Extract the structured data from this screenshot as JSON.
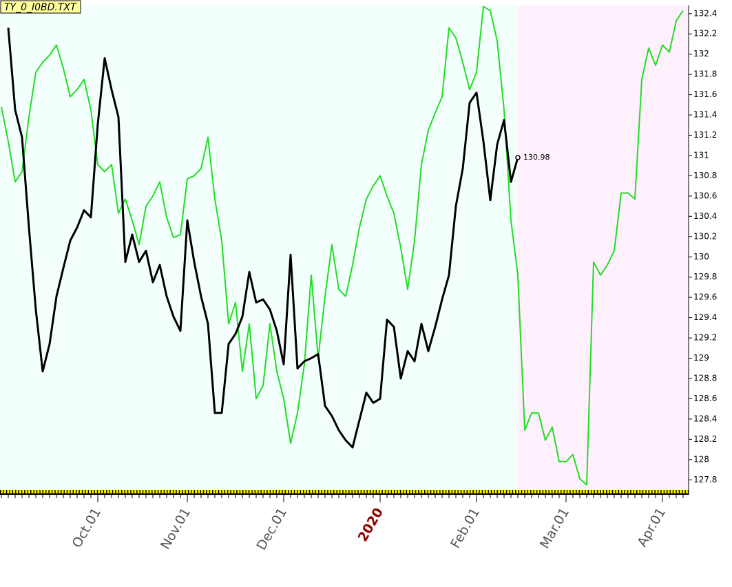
{
  "chart_data": {
    "type": "line",
    "title": "TY_0_I0BD.TXT",
    "categories": [
      null,
      null,
      null,
      null,
      null,
      null,
      null,
      null,
      null,
      null,
      null,
      null,
      null,
      null,
      "Oct.01",
      null,
      null,
      null,
      null,
      null,
      null,
      null,
      null,
      null,
      null,
      null,
      null,
      "Nov.01",
      null,
      null,
      null,
      null,
      null,
      null,
      null,
      null,
      null,
      null,
      null,
      null,
      null,
      "Dec.01",
      null,
      null,
      null,
      null,
      null,
      null,
      null,
      null,
      null,
      null,
      null,
      null,
      null,
      "2020",
      null,
      null,
      null,
      null,
      null,
      null,
      null,
      null,
      null,
      null,
      null,
      null,
      null,
      "Feb.01",
      null,
      null,
      null,
      null,
      null,
      null,
      null,
      null,
      null,
      null,
      null,
      null,
      "Mar.01",
      null,
      null,
      null,
      null,
      null,
      null,
      null,
      null,
      null,
      null,
      null,
      null,
      null,
      "Apr.01",
      null,
      null,
      null
    ],
    "series": [
      {
        "color": "#000000",
        "values": [
          null,
          132.26,
          131.45,
          131.18,
          130.29,
          129.48,
          128.87,
          129.14,
          129.61,
          129.89,
          130.16,
          130.29,
          130.46,
          130.39,
          131.31,
          131.96,
          131.65,
          131.38,
          129.95,
          130.22,
          129.95,
          130.06,
          129.75,
          129.92,
          129.61,
          129.41,
          129.27,
          130.36,
          129.95,
          129.61,
          129.34,
          128.46,
          128.46,
          129.14,
          129.24,
          129.41,
          129.85,
          129.55,
          129.58,
          129.48,
          129.27,
          128.94,
          130.02,
          128.9,
          128.97,
          129.0,
          129.04,
          128.53,
          128.43,
          128.29,
          128.19,
          128.12,
          128.39,
          128.66,
          128.56,
          128.6,
          129.38,
          129.31,
          128.8,
          129.07,
          128.97,
          129.34,
          129.07,
          129.31,
          129.58,
          129.82,
          130.5,
          130.87,
          131.52,
          131.62,
          131.14,
          130.56,
          131.11,
          131.35,
          130.74,
          130.98,
          null,
          null,
          null,
          null,
          null,
          null,
          null,
          null,
          null,
          null,
          null,
          null,
          null,
          null,
          null,
          null,
          null,
          null,
          null,
          null,
          null,
          null,
          null,
          null
        ]
      },
      {
        "color": "#22dd22",
        "values": [
          131.48,
          131.14,
          130.74,
          130.84,
          131.38,
          131.82,
          131.92,
          131.99,
          132.09,
          131.86,
          131.58,
          131.65,
          131.75,
          131.45,
          130.91,
          130.84,
          130.91,
          130.43,
          130.57,
          130.36,
          130.12,
          130.5,
          130.6,
          130.74,
          130.39,
          130.19,
          130.22,
          130.77,
          130.8,
          130.87,
          131.18,
          130.57,
          130.16,
          129.34,
          129.55,
          128.87,
          129.34,
          128.6,
          128.73,
          129.34,
          128.87,
          128.6,
          128.16,
          128.46,
          128.94,
          129.82,
          129.0,
          129.61,
          130.12,
          129.68,
          129.61,
          129.92,
          130.29,
          130.57,
          130.7,
          130.8,
          130.6,
          130.43,
          130.09,
          129.68,
          130.16,
          130.91,
          131.25,
          131.42,
          131.58,
          132.26,
          132.16,
          131.92,
          131.65,
          131.82,
          132.47,
          132.43,
          132.13,
          131.45,
          130.36,
          129.82,
          128.29,
          128.46,
          128.46,
          128.19,
          128.32,
          127.98,
          127.98,
          128.05,
          127.81,
          127.75,
          129.95,
          129.82,
          129.92,
          130.06,
          130.63,
          130.63,
          130.57,
          131.75,
          132.06,
          131.89,
          132.09,
          132.02,
          132.33,
          132.43
        ]
      }
    ],
    "ylim": [
      127.7,
      132.48
    ],
    "yticks": [
      127.8,
      128,
      128.2,
      128.4,
      128.6,
      128.8,
      129,
      129.2,
      129.4,
      129.6,
      129.8,
      130,
      130.2,
      130.4,
      130.6,
      130.8,
      131,
      131.2,
      131.4,
      131.6,
      131.8,
      132,
      132.2,
      132.4
    ]
  }
}
